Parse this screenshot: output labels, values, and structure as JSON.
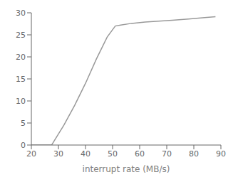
{
  "chart_data": {
    "type": "line",
    "xlabel": "interrupt rate (MB/s)",
    "x": [
      20,
      27.5,
      28,
      29,
      32,
      36,
      40,
      44,
      48,
      51,
      53,
      57,
      62,
      67,
      72,
      78,
      84,
      88
    ],
    "values": [
      0,
      0,
      0.5,
      1.5,
      4.5,
      9.0,
      14.0,
      19.5,
      24.5,
      27.0,
      27.2,
      27.6,
      27.9,
      28.1,
      28.3,
      28.6,
      28.9,
      29.1
    ],
    "xlim": [
      20,
      90
    ],
    "ylim": [
      0,
      30
    ],
    "xticks": [
      20,
      30,
      40,
      50,
      60,
      70,
      80,
      90
    ],
    "yticks": [
      0,
      5,
      10,
      15,
      20,
      25,
      30
    ],
    "color": "#999999",
    "grid": false
  }
}
